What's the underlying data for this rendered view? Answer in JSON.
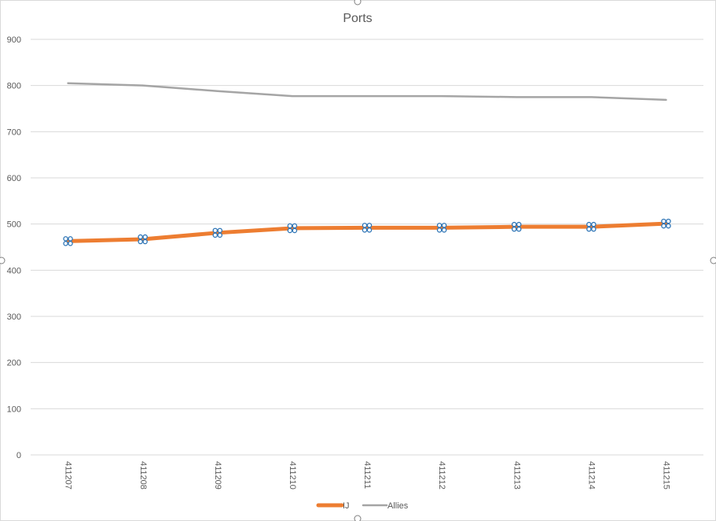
{
  "chart_data": {
    "type": "line",
    "title": "Ports",
    "categories": [
      "411207",
      "411208",
      "411209",
      "411210",
      "411211",
      "411212",
      "411213",
      "411214",
      "411215"
    ],
    "series": [
      {
        "name": "IJ",
        "color": "#ed7d31",
        "values": [
          463,
          467,
          481,
          491,
          492,
          492,
          494,
          494,
          501
        ],
        "selected": true
      },
      {
        "name": "Allies",
        "color": "#a5a5a5",
        "values": [
          805,
          800,
          788,
          777,
          777,
          777,
          775,
          775,
          769
        ]
      }
    ],
    "y_ticks": [
      0,
      100,
      200,
      300,
      400,
      500,
      600,
      700,
      800,
      900
    ],
    "ylim": [
      0,
      900
    ],
    "grid": true,
    "legend_position": "bottom",
    "xlabel": "",
    "ylabel": ""
  }
}
